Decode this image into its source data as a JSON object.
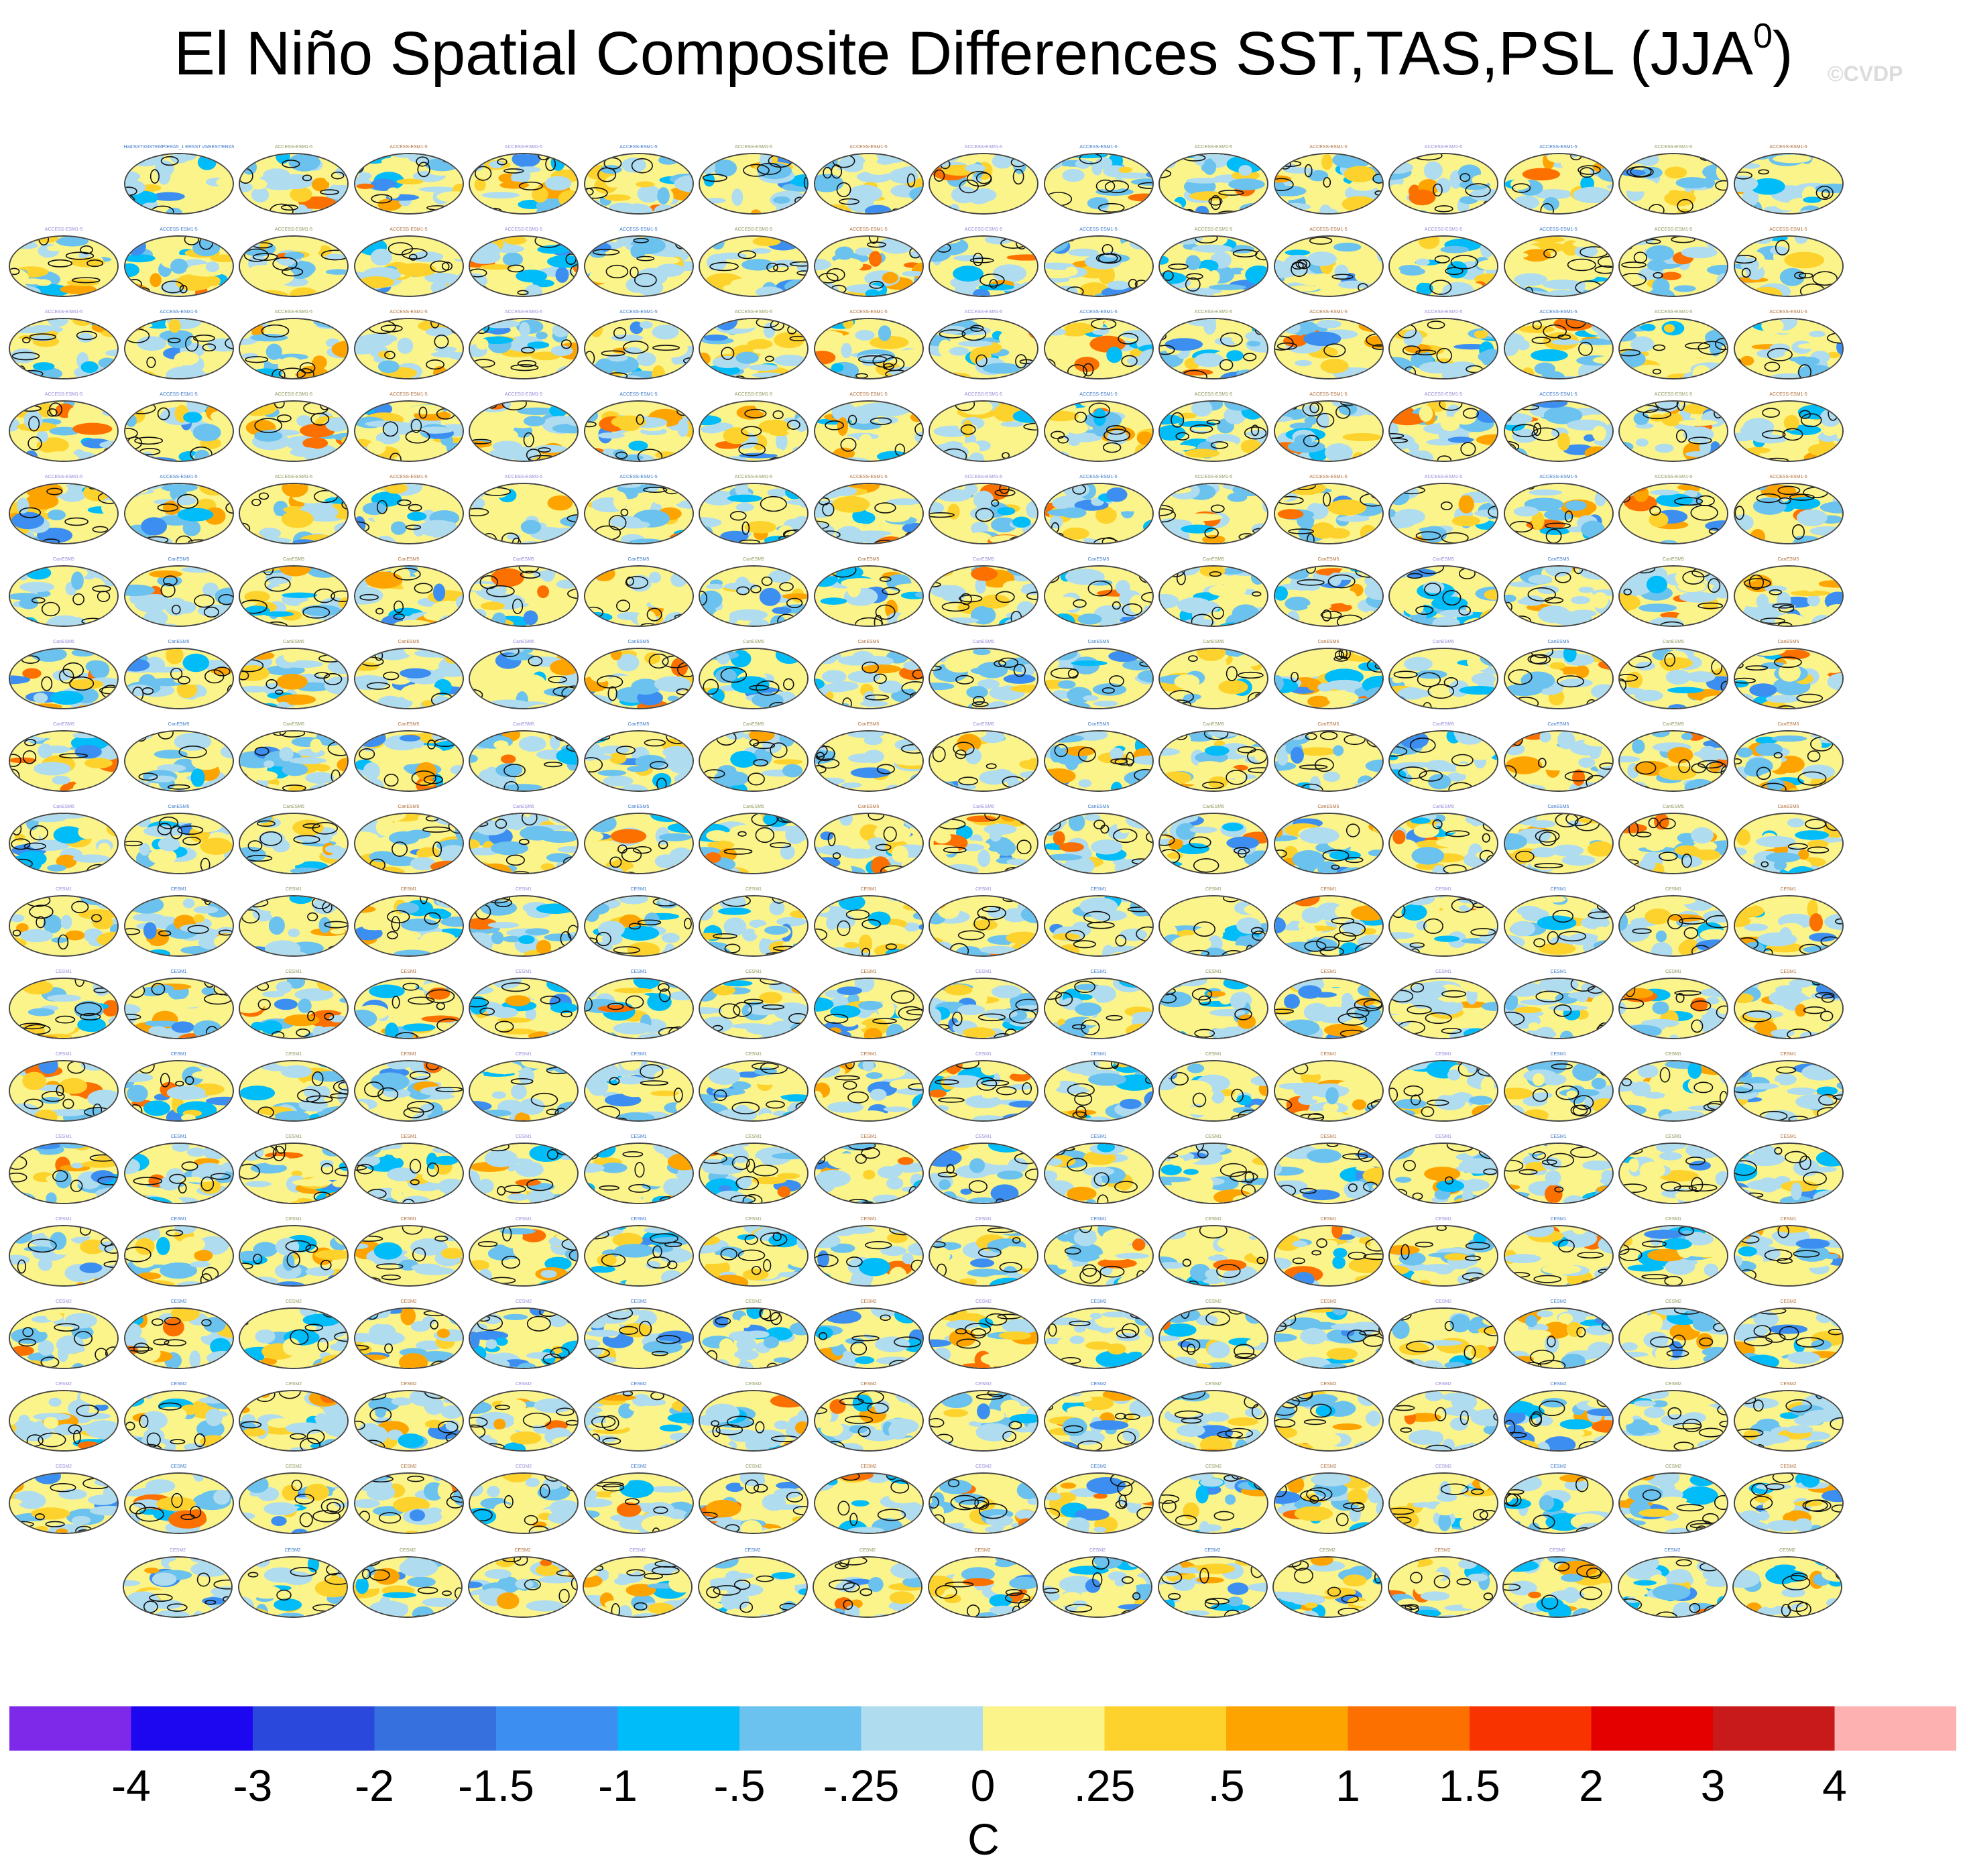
{
  "title": "El Niño Spatial Composite Differences SST,TAS,PSL (JJA",
  "title_superscript": "0",
  "title_close": ")",
  "watermark": "©CVDP",
  "chart_data": {
    "type": "heatmap",
    "title": "El Niño Spatial Composite Differences SST,TAS,PSL (JJA0)",
    "panel_grid": {
      "rows": 18,
      "columns": 16,
      "panel_count": 286,
      "projection": "Robinson global map"
    },
    "first_panel_label": "HadISST/GISTEMP/ERA5_1 ERSST v5/BEST/ERA5",
    "panel_label_prefixes": [
      "ACCESS-ESM1-5",
      "CanESM5",
      "CESM1",
      "CESM2"
    ],
    "contours": "PSL composite difference (black lines)",
    "colorbar": {
      "levels": [
        "-4",
        "-3",
        "-2",
        "-1.5",
        "-1",
        "-.5",
        "-.25",
        "0",
        ".25",
        ".5",
        "1",
        "1.5",
        "2",
        "3",
        "4"
      ],
      "colors": [
        "#7e28ea",
        "#1d07f0",
        "#2b48dc",
        "#3670de",
        "#3c8ff0",
        "#00bcf9",
        "#6bc2ee",
        "#b0dcf0",
        "#fbf48a",
        "#fdd22c",
        "#fda400",
        "#fc7000",
        "#f93300",
        "#e50000",
        "#c81a1a",
        "#fdb1b1"
      ],
      "unit": "C"
    }
  }
}
